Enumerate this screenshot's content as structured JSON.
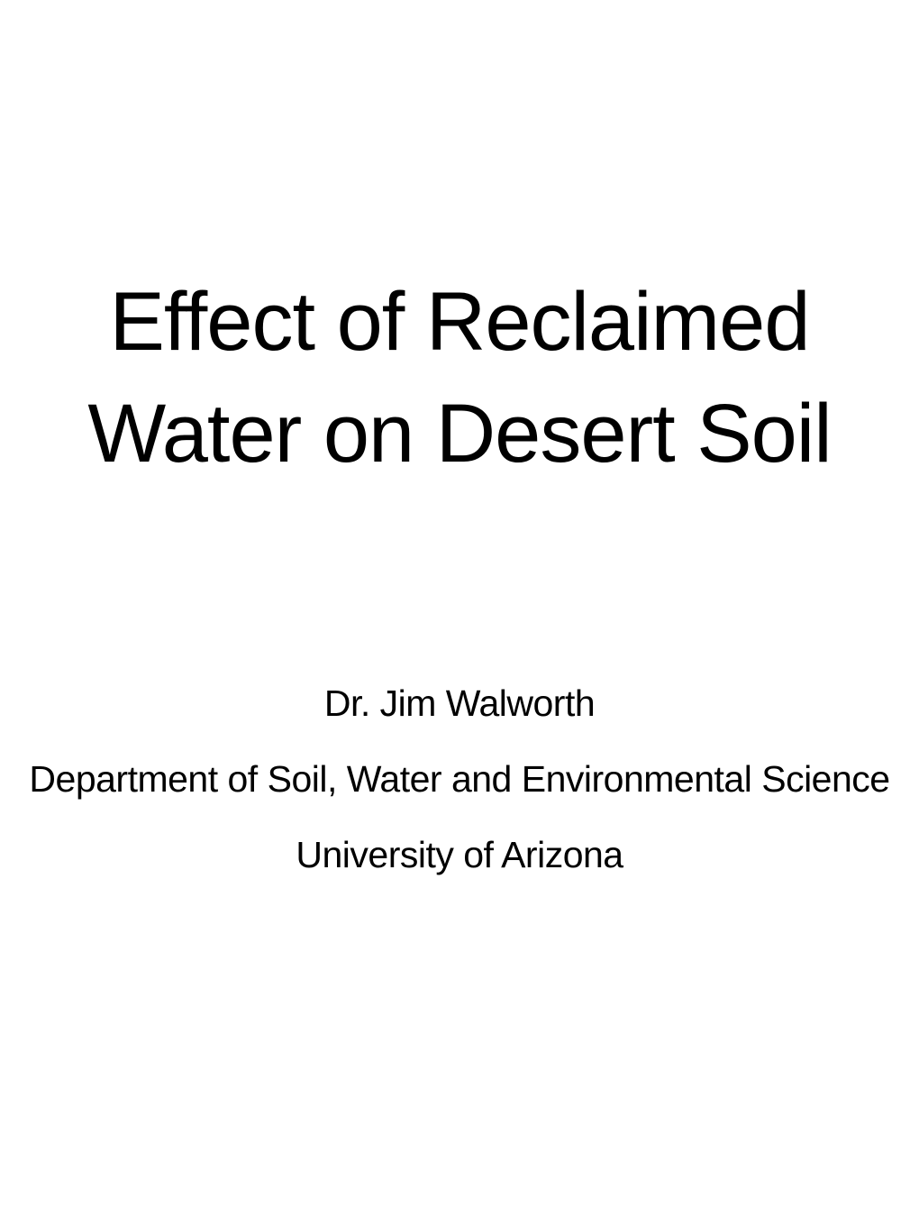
{
  "slide": {
    "title": "Effect of Reclaimed Water on Desert Soil",
    "author": "Dr. Jim Walworth",
    "department": "Department of Soil, Water and Environmental Science",
    "institution": "University of Arizona",
    "background_color": "#ffffff",
    "text_color": "#000000",
    "title_fontsize": 92,
    "subtitle_fontsize": 41
  }
}
